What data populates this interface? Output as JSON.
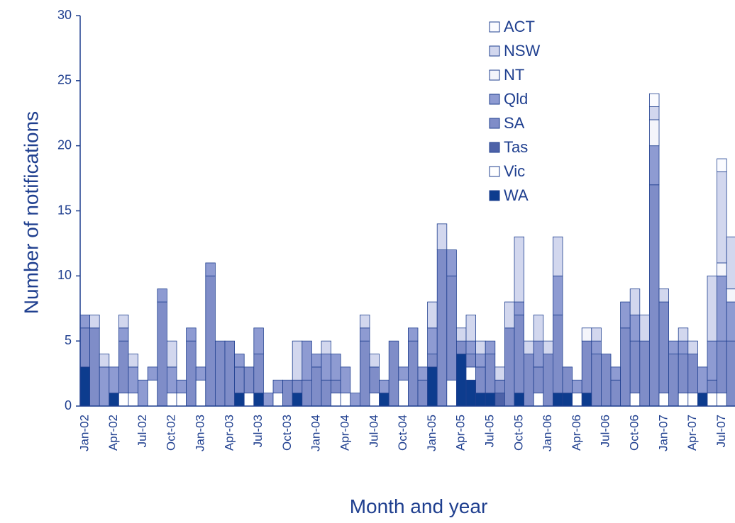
{
  "chart_data": {
    "type": "stacked-bar",
    "y_label": "Number of notifications",
    "x_label": "Month and year",
    "ylim": [
      0,
      30
    ],
    "yticks": [
      0,
      5,
      10,
      15,
      20,
      25,
      30
    ],
    "categories": [
      "Jan-02",
      null,
      null,
      "Apr-02",
      null,
      null,
      "Jul-02",
      null,
      null,
      "Oct-02",
      null,
      null,
      "Jan-03",
      null,
      null,
      "Apr-03",
      null,
      null,
      "Jul-03",
      null,
      null,
      "Oct-03",
      null,
      null,
      "Jan-04",
      null,
      null,
      "Apr-04",
      null,
      null,
      "Jul-04",
      null,
      null,
      "Oct-04",
      null,
      null,
      "Jan-05",
      null,
      null,
      "Apr-05",
      null,
      null,
      "Jul-05",
      null,
      null,
      "Oct-05",
      null,
      null,
      "Jan-06",
      null,
      null,
      "Apr-06",
      null,
      null,
      "Jul-06",
      null,
      null,
      "Oct-06",
      null,
      null,
      "Jan-07",
      null,
      null,
      "Apr-07",
      null,
      null,
      "Jul-07",
      null
    ],
    "series": [
      {
        "name": "WA",
        "color": "#0d3c8e",
        "values": [
          3,
          0,
          0,
          1,
          0,
          0,
          0,
          0,
          0,
          0,
          0,
          0,
          0,
          0,
          0,
          0,
          1,
          0,
          1,
          0,
          0,
          0,
          1,
          0,
          0,
          0,
          0,
          0,
          0,
          0,
          0,
          1,
          0,
          0,
          0,
          0,
          3,
          0,
          0,
          4,
          2,
          1,
          1,
          0,
          0,
          1,
          0,
          0,
          0,
          1,
          1,
          0,
          1,
          0,
          0,
          0,
          0,
          0,
          0,
          0,
          0,
          0,
          0,
          0,
          1,
          0,
          0,
          0
        ]
      },
      {
        "name": "Vic",
        "color": "#ffffff",
        "values": [
          0,
          0,
          0,
          0,
          1,
          1,
          0,
          2,
          0,
          1,
          1,
          0,
          2,
          0,
          0,
          0,
          0,
          1,
          0,
          0,
          1,
          0,
          0,
          0,
          0,
          0,
          1,
          1,
          0,
          0,
          1,
          0,
          0,
          2,
          0,
          0,
          0,
          0,
          2,
          0,
          1,
          0,
          0,
          0,
          0,
          0,
          0,
          1,
          0,
          0,
          0,
          1,
          0,
          0,
          0,
          0,
          0,
          1,
          0,
          0,
          1,
          0,
          1,
          1,
          0,
          1,
          1,
          0
        ]
      },
      {
        "name": "Tas",
        "color": "#4d62a8",
        "values": [
          0,
          0,
          0,
          0,
          0,
          0,
          0,
          0,
          0,
          0,
          0,
          0,
          0,
          0,
          0,
          0,
          0,
          0,
          0,
          0,
          0,
          0,
          0,
          0,
          0,
          0,
          0,
          0,
          0,
          0,
          0,
          0,
          0,
          0,
          0,
          0,
          0,
          0,
          0,
          0,
          0,
          0,
          0,
          1,
          0,
          0,
          0,
          0,
          0,
          0,
          0,
          0,
          0,
          0,
          0,
          0,
          0,
          0,
          0,
          0,
          0,
          0,
          0,
          0,
          0,
          0,
          0,
          0
        ]
      },
      {
        "name": "SA",
        "color": "#7f8dc8",
        "values": [
          3,
          6,
          0,
          0,
          4,
          0,
          0,
          0,
          8,
          0,
          0,
          5,
          0,
          10,
          5,
          5,
          2,
          2,
          3,
          0,
          0,
          2,
          1,
          2,
          3,
          2,
          1,
          0,
          0,
          5,
          2,
          0,
          5,
          0,
          5,
          2,
          1,
          12,
          8,
          1,
          1,
          2,
          3,
          1,
          6,
          6,
          4,
          2,
          4,
          6,
          2,
          0,
          4,
          4,
          4,
          2,
          6,
          4,
          5,
          17,
          7,
          4,
          3,
          3,
          0,
          1,
          4,
          5
        ]
      },
      {
        "name": "Qld",
        "color": "#8e9bd2",
        "values": [
          1,
          0,
          3,
          2,
          1,
          2,
          2,
          1,
          1,
          2,
          1,
          1,
          1,
          1,
          0,
          0,
          1,
          0,
          2,
          1,
          1,
          0,
          0,
          3,
          1,
          2,
          2,
          2,
          1,
          1,
          0,
          1,
          0,
          1,
          1,
          1,
          2,
          0,
          2,
          0,
          1,
          1,
          1,
          0,
          0,
          1,
          0,
          2,
          0,
          3,
          0,
          1,
          0,
          1,
          0,
          1,
          2,
          2,
          0,
          3,
          0,
          1,
          1,
          0,
          2,
          3,
          5,
          3
        ]
      },
      {
        "name": "NT",
        "color": "#f4f5fb",
        "values": [
          0,
          0,
          0,
          0,
          0,
          0,
          0,
          0,
          0,
          0,
          0,
          0,
          0,
          0,
          0,
          0,
          0,
          0,
          0,
          0,
          0,
          0,
          0,
          0,
          0,
          0,
          0,
          0,
          0,
          0,
          0,
          0,
          0,
          0,
          0,
          0,
          0,
          0,
          0,
          0,
          0,
          0,
          0,
          0,
          0,
          0,
          0,
          0,
          0,
          0,
          0,
          0,
          1,
          0,
          0,
          0,
          0,
          0,
          0,
          2,
          0,
          0,
          0,
          0,
          0,
          0,
          1,
          1
        ]
      },
      {
        "name": "NSW",
        "color": "#d2d7ee",
        "values": [
          0,
          1,
          1,
          0,
          1,
          1,
          0,
          0,
          0,
          2,
          0,
          0,
          0,
          0,
          0,
          0,
          0,
          0,
          0,
          0,
          0,
          0,
          3,
          0,
          0,
          1,
          0,
          0,
          0,
          1,
          1,
          0,
          0,
          0,
          0,
          0,
          2,
          2,
          0,
          1,
          2,
          1,
          0,
          1,
          2,
          5,
          1,
          2,
          1,
          3,
          0,
          0,
          0,
          1,
          0,
          0,
          0,
          2,
          2,
          1,
          1,
          0,
          1,
          1,
          0,
          5,
          7,
          4
        ]
      },
      {
        "name": "ACT",
        "color": "#fafbff",
        "values": [
          0,
          0,
          0,
          0,
          0,
          0,
          0,
          0,
          0,
          0,
          0,
          0,
          0,
          0,
          0,
          0,
          0,
          0,
          0,
          0,
          0,
          0,
          0,
          0,
          0,
          0,
          0,
          0,
          0,
          0,
          0,
          0,
          0,
          0,
          0,
          0,
          0,
          0,
          0,
          0,
          0,
          0,
          0,
          0,
          0,
          0,
          0,
          0,
          0,
          0,
          0,
          0,
          0,
          0,
          0,
          0,
          0,
          0,
          0,
          1,
          0,
          0,
          0,
          0,
          0,
          0,
          1,
          0
        ]
      }
    ]
  }
}
